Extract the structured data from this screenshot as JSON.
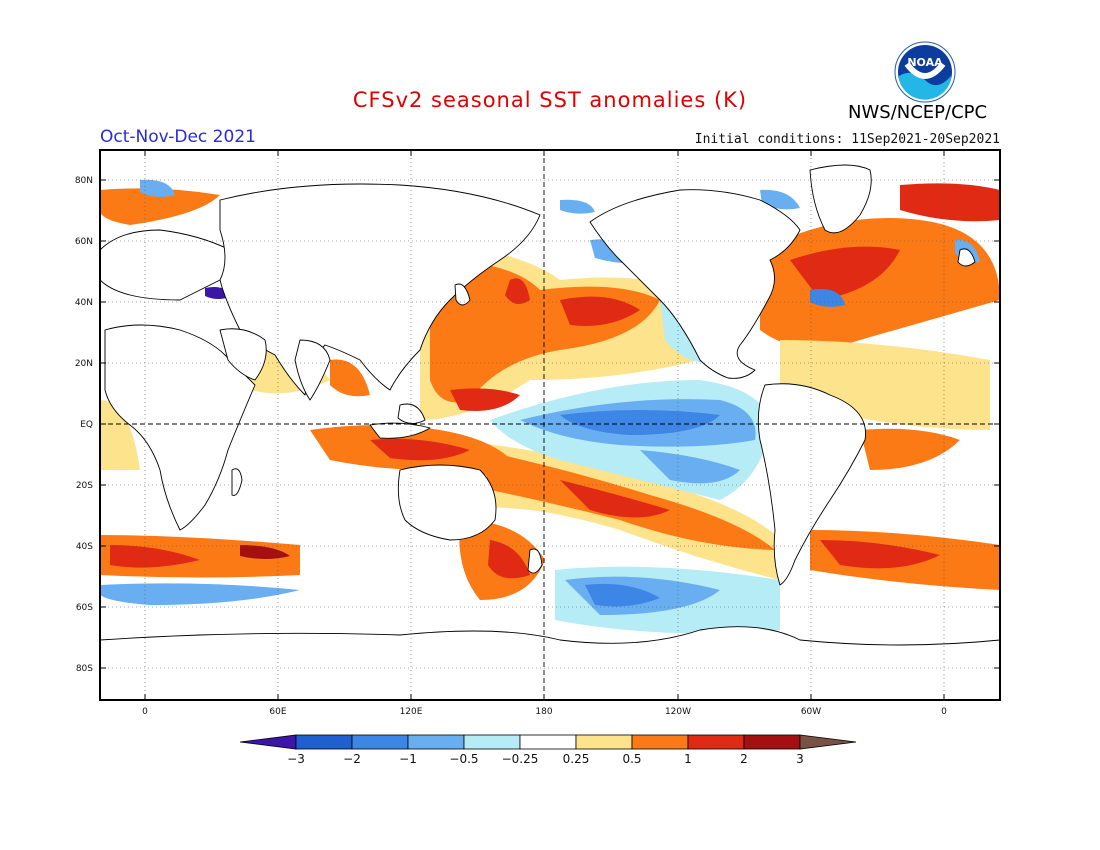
{
  "header": {
    "title": "CFSv2 seasonal SST anomalies (K)",
    "period": "Oct-Nov-Dec 2021",
    "initial_conditions": "Initial conditions: 11Sep2021-20Sep2021",
    "agency": "NWS/NCEP/CPC",
    "logo_text": "NOAA"
  },
  "axes": {
    "lat_labels": [
      "80N",
      "60N",
      "40N",
      "20N",
      "EQ",
      "20S",
      "40S",
      "60S",
      "80S"
    ],
    "lon_labels": [
      "0",
      "60E",
      "120E",
      "180",
      "120W",
      "60W",
      "0"
    ]
  },
  "colorbar": {
    "labels": [
      "−3",
      "−2",
      "−1",
      "−0.5",
      "−0.25",
      "0.25",
      "0.5",
      "1",
      "2",
      "3"
    ],
    "colors": [
      "#3c16a8",
      "#1f5fcf",
      "#3d86e6",
      "#6aaef2",
      "#b6ecf5",
      "#ffffff",
      "#fde38c",
      "#fb7a16",
      "#e12a14",
      "#a3100f",
      "#7a5244"
    ]
  },
  "legend_colors": {
    "warm_strong": "#a3100f",
    "warm": "#e12a14",
    "warm_mod": "#fb7a16",
    "warm_weak": "#fde38c",
    "cool_weak": "#b6ecf5",
    "cool_mod": "#6aaef2",
    "cool": "#3d86e6",
    "cool_strong": "#1f5fcf",
    "land": "#ffffff"
  }
}
